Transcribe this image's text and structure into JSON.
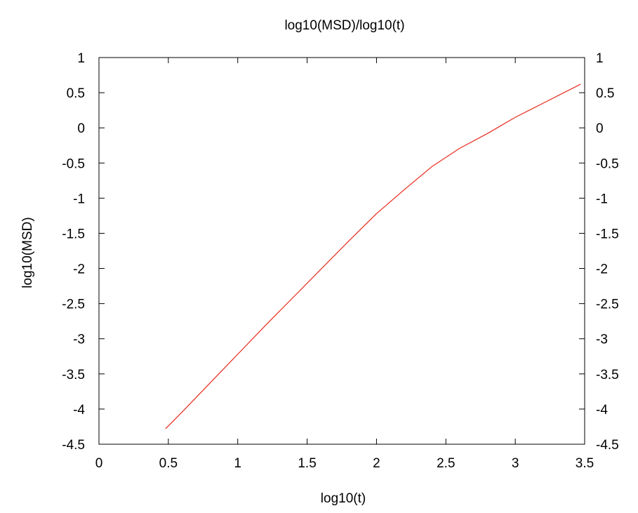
{
  "chart_data": {
    "type": "line",
    "title": "log10(MSD)/log10(t)",
    "xlabel": "log10(t)",
    "ylabel": "log10(MSD)",
    "xlim": [
      0,
      3.5
    ],
    "ylim": [
      -4.5,
      1
    ],
    "x_ticks": [
      "0",
      "0.5",
      "1",
      "1.5",
      "2",
      "2.5",
      "3",
      "3.5"
    ],
    "y_ticks": [
      "1",
      "0.5",
      "0",
      "-0.5",
      "-1",
      "-1.5",
      "-2",
      "-2.5",
      "-3",
      "-3.5",
      "-4",
      "-4.5"
    ],
    "y_ticks_mirrored_right": true,
    "grid": false,
    "legend": "none",
    "series": [
      {
        "color": "#e8291c",
        "x": [
          0.48,
          0.6,
          0.8,
          1.0,
          1.2,
          1.4,
          1.6,
          1.8,
          2.0,
          2.2,
          2.4,
          2.6,
          2.8,
          3.0,
          3.2,
          3.35,
          3.47
        ],
        "y": [
          -4.28,
          -4.04,
          -3.63,
          -3.22,
          -2.81,
          -2.41,
          -2.01,
          -1.61,
          -1.22,
          -0.88,
          -0.55,
          -0.29,
          -0.08,
          0.15,
          0.35,
          0.5,
          0.62
        ]
      }
    ]
  }
}
